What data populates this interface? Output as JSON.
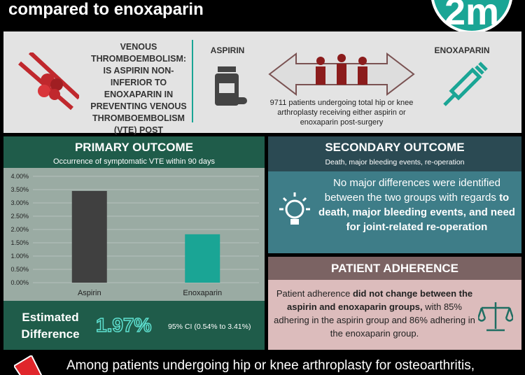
{
  "header": {
    "title": "compared to enoxaparin",
    "logo": "2m"
  },
  "intro": {
    "question": "VENOUS THROMBOEMBOLISM: IS ASPIRIN NON-INFERIOR TO ENOXAPARIN IN PREVENTING VENOUS THROMBOEMBOLISM (VTE) POST ARTHROPLASTY?",
    "aspirin": "ASPIRIN",
    "enoxaparin": "ENOXAPARIN",
    "population": "9711 patients undergoing total hip or knee arthroplasty receiving either aspirin or enoxaparin post-surgery"
  },
  "primary": {
    "title": "PRIMARY OUTCOME",
    "subtitle": "Occurrence of symptomatic VTE within 90 days",
    "estimate_label": "Estimated Difference",
    "estimate": "1.97%",
    "ci": "95% CI (0.54% to 3.41%)"
  },
  "chart_data": {
    "type": "bar",
    "categories": [
      "Aspirin",
      "Enoxaparin"
    ],
    "series": [
      {
        "name": "Occurrence of symptomatic VTE",
        "colors": [
          "#404040",
          "#1aa595"
        ],
        "values": [
          3.45,
          1.82
        ]
      }
    ],
    "ylim": [
      0,
      4
    ],
    "yticks": [
      {
        "value": 0,
        "label": "0.00%"
      },
      {
        "value": 0.5,
        "label": "0.50%"
      },
      {
        "value": 1,
        "label": "1.00%"
      },
      {
        "value": 1.5,
        "label": "1.50%"
      },
      {
        "value": 2,
        "label": "2.00%"
      },
      {
        "value": 2.5,
        "label": "2.50%"
      },
      {
        "value": 3,
        "label": "3.00%"
      },
      {
        "value": 3.5,
        "label": "3.50%"
      },
      {
        "value": 4,
        "label": "4.00%"
      }
    ]
  },
  "secondary": {
    "title": "SECONDARY OUTCOME",
    "subtitle": "Death, major bleeding events, re-operation",
    "text": "No major differences were identified between the two groups with regards ",
    "text_bold": "to death, major bleeding events, and need for joint-related re-operation"
  },
  "adherence": {
    "title": "PATIENT ADHERENCE",
    "text_1": "Patient adherence ",
    "text_bold": "did not change between the aspirin and enoxaparin groups,",
    "text_2": " with 85% adhering in the aspirin group and 86% adhering in the enoxaparin group."
  },
  "footer": {
    "text": "Among patients undergoing hip or knee arthroplasty for osteoarthritis,"
  }
}
